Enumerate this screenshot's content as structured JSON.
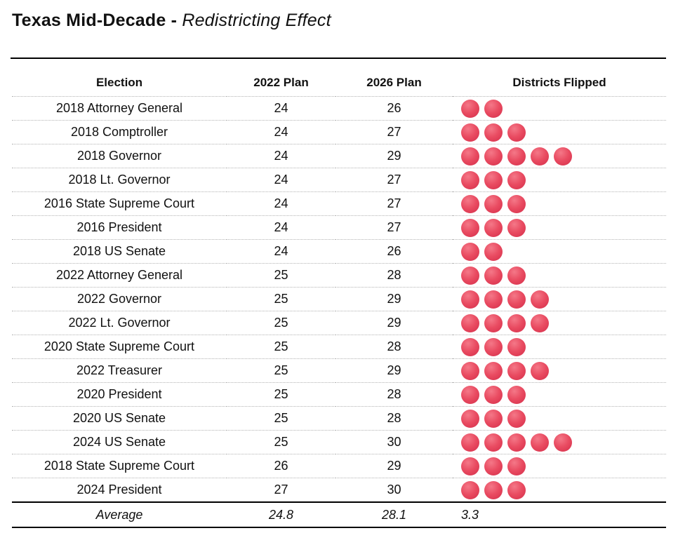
{
  "title": {
    "bold": "Texas Mid-Decade - ",
    "italic": "Redistricting Effect"
  },
  "colors": {
    "dot": "#e94b61",
    "dot_highlight": "#f47888",
    "dot_shadow": "#d42e4a",
    "rule": "#000000",
    "row_divider": "#b3b3b3",
    "text": "#111111"
  },
  "table": {
    "headers": [
      "Election",
      "2022 Plan",
      "2026 Plan",
      "Districts Flipped"
    ],
    "rows": [
      {
        "election": "2018 Attorney General",
        "plan2022": "24",
        "plan2026": "26",
        "flipped": 2
      },
      {
        "election": "2018 Comptroller",
        "plan2022": "24",
        "plan2026": "27",
        "flipped": 3
      },
      {
        "election": "2018 Governor",
        "plan2022": "24",
        "plan2026": "29",
        "flipped": 5
      },
      {
        "election": "2018 Lt. Governor",
        "plan2022": "24",
        "plan2026": "27",
        "flipped": 3
      },
      {
        "election": "2016 State Supreme Court",
        "plan2022": "24",
        "plan2026": "27",
        "flipped": 3
      },
      {
        "election": "2016 President",
        "plan2022": "24",
        "plan2026": "27",
        "flipped": 3
      },
      {
        "election": "2018 US Senate",
        "plan2022": "24",
        "plan2026": "26",
        "flipped": 2
      },
      {
        "election": "2022 Attorney General",
        "plan2022": "25",
        "plan2026": "28",
        "flipped": 3
      },
      {
        "election": "2022 Governor",
        "plan2022": "25",
        "plan2026": "29",
        "flipped": 4
      },
      {
        "election": "2022 Lt. Governor",
        "plan2022": "25",
        "plan2026": "29",
        "flipped": 4
      },
      {
        "election": "2020 State Supreme Court",
        "plan2022": "25",
        "plan2026": "28",
        "flipped": 3
      },
      {
        "election": "2022 Treasurer",
        "plan2022": "25",
        "plan2026": "29",
        "flipped": 4
      },
      {
        "election": "2020 President",
        "plan2022": "25",
        "plan2026": "28",
        "flipped": 3
      },
      {
        "election": "2020 US Senate",
        "plan2022": "25",
        "plan2026": "28",
        "flipped": 3
      },
      {
        "election": "2024 US Senate",
        "plan2022": "25",
        "plan2026": "30",
        "flipped": 5
      },
      {
        "election": "2018 State Supreme Court",
        "plan2022": "26",
        "plan2026": "29",
        "flipped": 3
      },
      {
        "election": "2024 President",
        "plan2022": "27",
        "plan2026": "30",
        "flipped": 3
      }
    ],
    "average": {
      "label": "Average",
      "plan2022": "24.8",
      "plan2026": "28.1",
      "flipped": "3.3"
    }
  },
  "chart_data": {
    "type": "table",
    "title": "Texas Mid-Decade - Redistricting Effect",
    "columns": [
      "Election",
      "2022 Plan",
      "2026 Plan",
      "Districts Flipped"
    ],
    "rows": [
      [
        "2018 Attorney General",
        24,
        26,
        2
      ],
      [
        "2018 Comptroller",
        24,
        27,
        3
      ],
      [
        "2018 Governor",
        24,
        29,
        5
      ],
      [
        "2018 Lt. Governor",
        24,
        27,
        3
      ],
      [
        "2016 State Supreme Court",
        24,
        27,
        3
      ],
      [
        "2016 President",
        24,
        27,
        3
      ],
      [
        "2018 US Senate",
        24,
        26,
        2
      ],
      [
        "2022 Attorney General",
        25,
        28,
        3
      ],
      [
        "2022 Governor",
        25,
        29,
        4
      ],
      [
        "2022 Lt. Governor",
        25,
        29,
        4
      ],
      [
        "2020 State Supreme Court",
        25,
        28,
        3
      ],
      [
        "2022 Treasurer",
        25,
        29,
        4
      ],
      [
        "2020 President",
        25,
        28,
        3
      ],
      [
        "2020 US Senate",
        25,
        28,
        3
      ],
      [
        "2024 US Senate",
        25,
        30,
        5
      ],
      [
        "2018 State Supreme Court",
        26,
        29,
        3
      ],
      [
        "2024 President",
        27,
        30,
        3
      ]
    ],
    "average_row": [
      "Average",
      24.8,
      28.1,
      3.3
    ],
    "layout": {
      "flipped_rendered_as": "pictogram-dots",
      "one_dot_equals": 1,
      "grid": "dotted row dividers, solid rules above header block and around average row"
    }
  }
}
